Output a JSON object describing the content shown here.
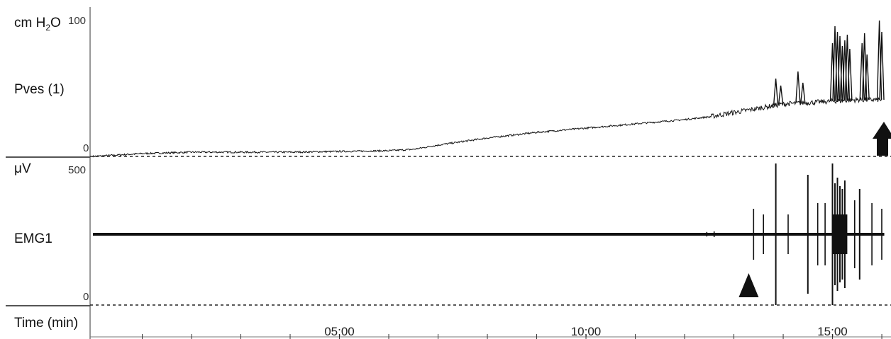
{
  "chart_data": [
    {
      "type": "line",
      "channel_label": "Pves (1)",
      "unit_prefix": "cm H",
      "unit_sub": "2",
      "unit_suffix": "O",
      "ylim": [
        0,
        100
      ],
      "ymax_label": "100",
      "ymin_label": "0",
      "x_minutes": [
        0,
        0.5,
        1,
        2,
        3,
        4,
        5,
        6,
        6.5,
        7,
        8,
        9,
        10,
        11,
        12,
        12.5,
        13,
        13.5,
        14,
        14.5,
        15,
        15.5,
        16
      ],
      "values": [
        0,
        1,
        2,
        3,
        3,
        3,
        3.5,
        4,
        5,
        8,
        13,
        17,
        20,
        23,
        26,
        28,
        31,
        34,
        37,
        38,
        39,
        40,
        40
      ],
      "spikes": [
        {
          "x": 13.85,
          "y": 55
        },
        {
          "x": 13.95,
          "y": 50
        },
        {
          "x": 14.3,
          "y": 60
        },
        {
          "x": 14.4,
          "y": 52
        },
        {
          "x": 15.0,
          "y": 80
        },
        {
          "x": 15.05,
          "y": 92
        },
        {
          "x": 15.1,
          "y": 88
        },
        {
          "x": 15.15,
          "y": 85
        },
        {
          "x": 15.2,
          "y": 78
        },
        {
          "x": 15.25,
          "y": 82
        },
        {
          "x": 15.3,
          "y": 86
        },
        {
          "x": 15.35,
          "y": 76
        },
        {
          "x": 15.6,
          "y": 80
        },
        {
          "x": 15.65,
          "y": 87
        },
        {
          "x": 15.7,
          "y": 72
        },
        {
          "x": 15.95,
          "y": 96
        },
        {
          "x": 16.0,
          "y": 88
        }
      ],
      "marker": "arrow"
    },
    {
      "type": "line",
      "channel_label": "EMG1",
      "unit": "μV",
      "ylim": [
        0,
        500
      ],
      "ymax_label": "500",
      "ymin_label": "0",
      "baseline": 250,
      "bursts": [
        {
          "x": 12.45,
          "amp": 8
        },
        {
          "x": 12.6,
          "amp": 10
        },
        {
          "x": 13.4,
          "amp": 90
        },
        {
          "x": 13.6,
          "amp": 70
        },
        {
          "x": 13.85,
          "amp": 250
        },
        {
          "x": 14.1,
          "amp": 70
        },
        {
          "x": 14.5,
          "amp": 210
        },
        {
          "x": 14.7,
          "amp": 110
        },
        {
          "x": 14.85,
          "amp": 110
        },
        {
          "x": 15.0,
          "amp": 250
        },
        {
          "x": 15.05,
          "amp": 180
        },
        {
          "x": 15.1,
          "amp": 200
        },
        {
          "x": 15.15,
          "amp": 170
        },
        {
          "x": 15.2,
          "amp": 160
        },
        {
          "x": 15.25,
          "amp": 190
        },
        {
          "x": 15.45,
          "amp": 120
        },
        {
          "x": 15.55,
          "amp": 160
        },
        {
          "x": 15.8,
          "amp": 110
        },
        {
          "x": 16.0,
          "amp": 90
        }
      ],
      "marker": "triangle",
      "marker_x": 13.3
    },
    {
      "type": "axis",
      "channel_label": "Time (min)",
      "xlim": [
        0,
        16.1
      ],
      "tick_labels": [
        {
          "x": 5,
          "label": "05;00"
        },
        {
          "x": 10,
          "label": "10;00"
        },
        {
          "x": 15,
          "label": "15;00"
        }
      ],
      "minor_ticks": [
        1,
        2,
        3,
        4,
        5,
        6,
        7,
        8,
        9,
        10,
        11,
        12,
        13,
        14,
        15,
        16
      ]
    }
  ]
}
